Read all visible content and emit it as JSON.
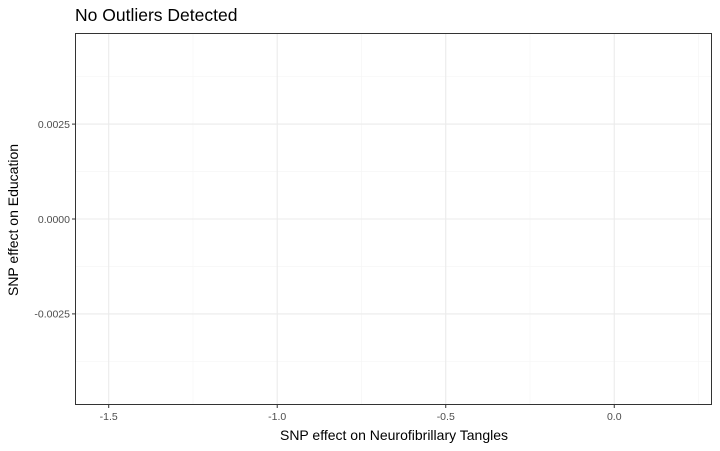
{
  "chart_data": {
    "type": "scatter",
    "title": "No Outliers Detected",
    "xlabel": "SNP effect on Neurofibrillary Tangles",
    "ylabel": "SNP effect on Education",
    "x_ticks": [
      -1.5,
      -1.0,
      -0.5,
      0.0
    ],
    "x_tick_labels": [
      "-1.5",
      "-1.0",
      "-0.5",
      "0.0"
    ],
    "y_ticks": [
      0.0025,
      0.0,
      -0.0025
    ],
    "y_tick_labels": [
      "0.0025",
      "0.0000",
      "-0.0025"
    ],
    "xlim": [
      -1.6,
      0.29
    ],
    "ylim": [
      -0.0049,
      0.0049
    ],
    "grid": true,
    "series": [],
    "colors": {
      "panel_border": "#333333",
      "grid_major": "#ebebeb",
      "grid_minor": "#f5f5f5",
      "tick_text": "#4d4d4d",
      "text": "#000000"
    }
  }
}
